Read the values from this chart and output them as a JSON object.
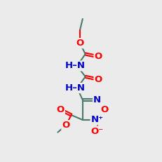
{
  "bg_color": "#ebebeb",
  "bond_color": "#4a7a6a",
  "O_color": "#ff0000",
  "N_color": "#0000cc",
  "C_color": "#4a7a6a",
  "lw": 1.5,
  "fs": 9.5
}
